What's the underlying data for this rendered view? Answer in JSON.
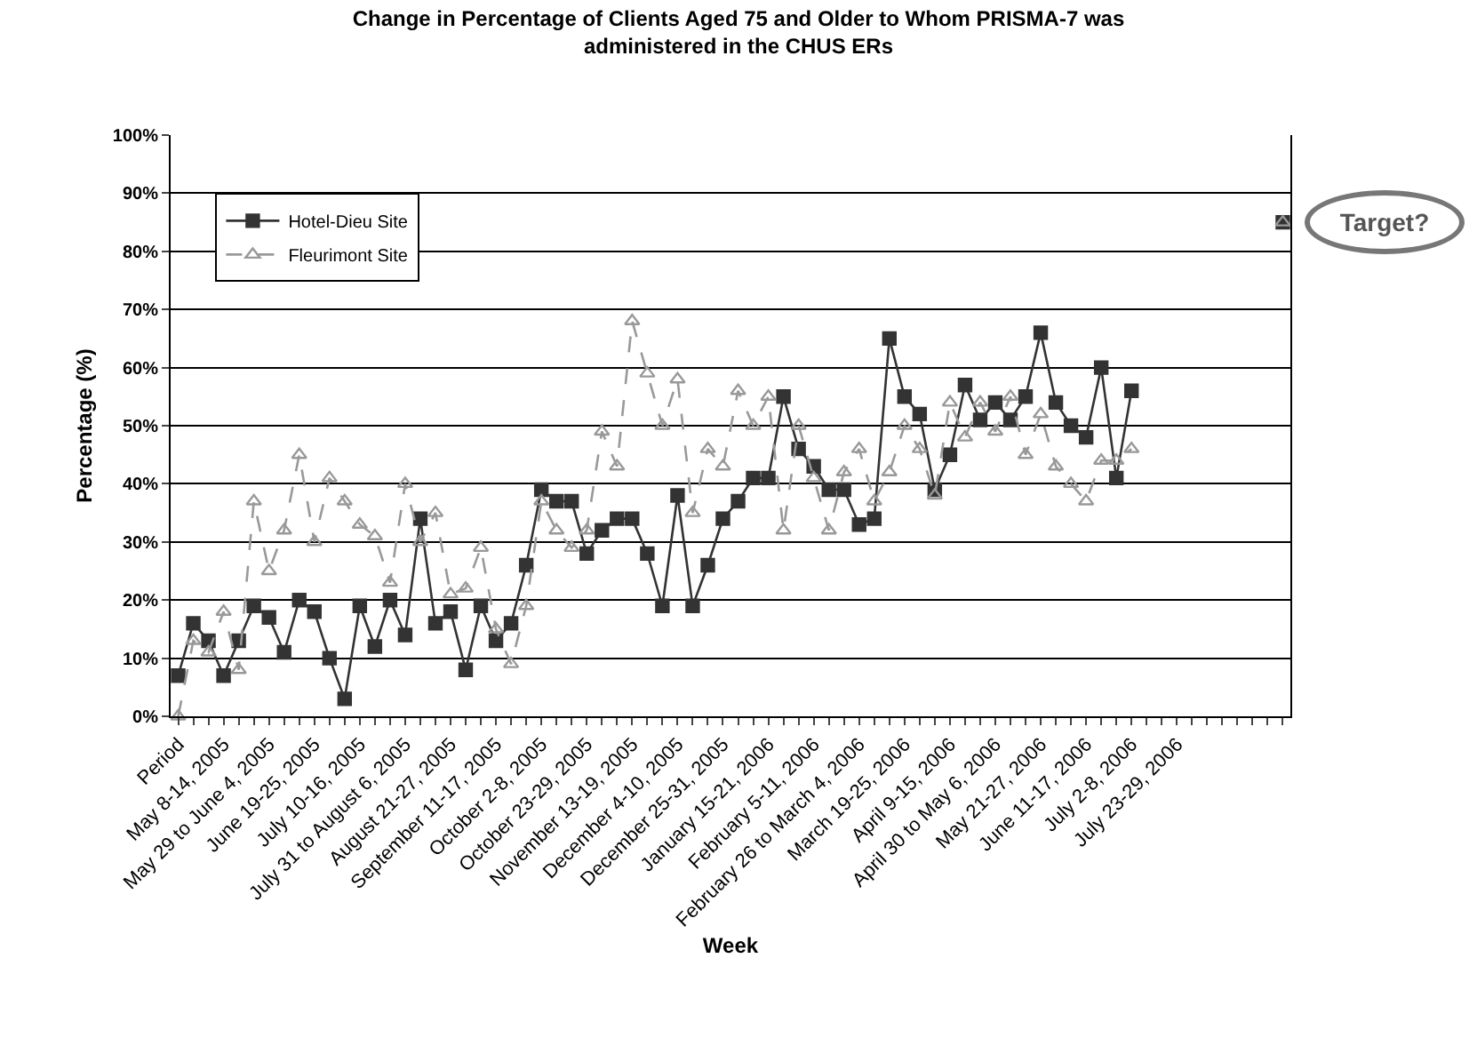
{
  "chart_data": {
    "type": "line",
    "title": "Change in Percentage of Clients Aged 75 and Older to Whom PRISMA-7 was administered in the CHUS ERs",
    "xlabel": "Week",
    "ylabel": "Percentage (%)",
    "categories": [
      "Period",
      null,
      null,
      "May 8-14, 2005",
      null,
      null,
      "May 29 to June 4, 2005",
      null,
      null,
      "June 19-25, 2005",
      null,
      null,
      "July 10-16, 2005",
      null,
      null,
      "July 31 to August 6, 2005",
      null,
      null,
      "August 21-27, 2005",
      null,
      null,
      "September 11-17, 2005",
      null,
      null,
      "October 2-8, 2005",
      null,
      null,
      "October 23-29, 2005",
      null,
      null,
      "November 13-19, 2005",
      null,
      null,
      "December 4-10, 2005",
      null,
      null,
      "December 25-31, 2005",
      null,
      null,
      "January 15-21, 2006",
      null,
      null,
      "February 5-11, 2006",
      null,
      null,
      "February 26 to March 4, 2006",
      null,
      null,
      "March 19-25, 2006",
      null,
      null,
      "April 9-15, 2006",
      null,
      null,
      "April 30 to May 6, 2006",
      null,
      null,
      "May 21-27, 2006",
      null,
      null,
      "June 11-17, 2006",
      null,
      null,
      "July 2-8, 2006",
      null,
      null,
      "July 23-29, 2006",
      null,
      null,
      null,
      null,
      null,
      null,
      null
    ],
    "series": [
      {
        "name": "Hotel-Dieu Site",
        "color": "#333333",
        "marker": "square",
        "line_style": "solid",
        "values": [
          7,
          16,
          13,
          7,
          13,
          19,
          17,
          11,
          20,
          18,
          10,
          3,
          19,
          12,
          20,
          14,
          34,
          16,
          18,
          8,
          19,
          13,
          16,
          26,
          39,
          37,
          37,
          28,
          32,
          34,
          34,
          28,
          19,
          38,
          19,
          26,
          34,
          37,
          41,
          41,
          55,
          46,
          43,
          39,
          39,
          33,
          34,
          65,
          55,
          52,
          39,
          45,
          57,
          51,
          54,
          51,
          55,
          66,
          54,
          50,
          48,
          60,
          41,
          56,
          null,
          null,
          null,
          null,
          null,
          null,
          null,
          null,
          null,
          85
        ]
      },
      {
        "name": "Fleurimont Site",
        "color": "#999999",
        "marker": "triangle",
        "line_style": "dashed",
        "values": [
          0,
          13,
          11,
          18,
          8,
          37,
          25,
          32,
          45,
          30,
          41,
          37,
          33,
          31,
          23,
          40,
          30,
          35,
          21,
          22,
          29,
          15,
          9,
          19,
          37,
          32,
          29,
          32,
          49,
          43,
          68,
          59,
          50,
          58,
          35,
          46,
          43,
          56,
          50,
          55,
          32,
          50,
          41,
          32,
          42,
          46,
          37,
          42,
          50,
          46,
          38,
          54,
          48,
          54,
          49,
          55,
          45,
          52,
          43,
          40,
          37,
          44,
          44,
          46,
          null,
          null,
          null,
          null,
          null,
          null,
          null,
          null,
          null,
          85
        ]
      }
    ],
    "ylim": [
      0,
      100
    ],
    "yticks": [
      {
        "value": 0,
        "label": "0%"
      },
      {
        "value": 10,
        "label": "10%"
      },
      {
        "value": 20,
        "label": "20%"
      },
      {
        "value": 30,
        "label": "30%"
      },
      {
        "value": 40,
        "label": "40%"
      },
      {
        "value": 50,
        "label": "50%"
      },
      {
        "value": 60,
        "label": "60%"
      },
      {
        "value": 70,
        "label": "70%"
      },
      {
        "value": 80,
        "label": "80%"
      },
      {
        "value": 90,
        "label": "90%"
      },
      {
        "value": 100,
        "label": "100%"
      }
    ],
    "grid": "y",
    "legend": "top left",
    "annotations": [
      "Target?"
    ]
  }
}
